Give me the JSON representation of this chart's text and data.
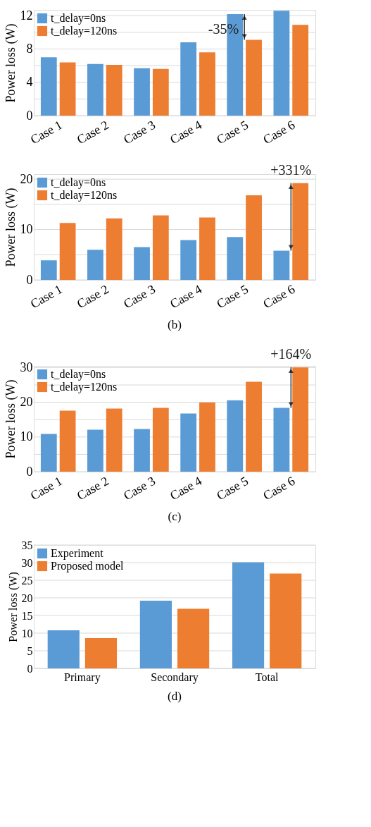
{
  "chart_data": [
    {
      "type": "bar",
      "ylabel": "Power loss (W)",
      "categories": [
        "Case 1",
        "Case 2",
        "Case 3",
        "Case 4",
        "Case 5",
        "Case 6"
      ],
      "series": [
        {
          "name": "t_delay=0ns",
          "color": "#5b9bd5",
          "values": [
            7.0,
            6.2,
            5.7,
            8.8,
            12.2,
            12.6
          ]
        },
        {
          "name": "t_delay=120ns",
          "color": "#ed7d31",
          "values": [
            6.4,
            6.1,
            5.6,
            7.6,
            9.1,
            10.9
          ]
        }
      ],
      "ylim": [
        0,
        12.7
      ],
      "yticks": [
        0,
        {
          "value": 2,
          "label": null
        },
        4,
        {
          "value": 6,
          "label": null
        },
        8,
        {
          "value": 10,
          "label": null
        },
        12
      ],
      "grid": "y",
      "legend": "top left",
      "annotations": [
        {
          "text": "-35%",
          "x": "Case 5",
          "y": 12.2
        }
      ]
    },
    {
      "type": "bar",
      "ylabel": "Power loss (W)",
      "categories": [
        "Case 1",
        "Case 2",
        "Case 3",
        "Case 4",
        "Case 5",
        "Case 6"
      ],
      "series": [
        {
          "name": "t_delay=0ns",
          "color": "#5b9bd5",
          "values": [
            3.9,
            6.0,
            6.5,
            7.9,
            8.5,
            5.8
          ]
        },
        {
          "name": "t_delay=120ns",
          "color": "#ed7d31",
          "values": [
            11.3,
            12.2,
            12.8,
            12.4,
            16.8,
            19.2
          ]
        }
      ],
      "ylim": [
        0,
        21
      ],
      "yticks": [
        0,
        {
          "value": 5,
          "label": null
        },
        10,
        {
          "value": 15,
          "label": null
        },
        20
      ],
      "grid": "y",
      "legend": "top left",
      "annotations": [
        {
          "text": "+331%",
          "x": "Case 6",
          "y": 19.2
        },
        "(b)"
      ]
    },
    {
      "type": "bar",
      "ylabel": "Power loss (W)",
      "categories": [
        "Case 1",
        "Case 2",
        "Case 3",
        "Case 4",
        "Case 5",
        "Case 6"
      ],
      "series": [
        {
          "name": "t_delay=0ns",
          "color": "#5b9bd5",
          "values": [
            10.9,
            12.1,
            12.3,
            16.8,
            20.6,
            18.4
          ]
        },
        {
          "name": "t_delay=120ns",
          "color": "#ed7d31",
          "values": [
            17.6,
            18.2,
            18.4,
            20.0,
            25.9,
            30.1
          ]
        }
      ],
      "ylim": [
        0,
        30.5
      ],
      "yticks": [
        0,
        {
          "value": 5,
          "label": null
        },
        10,
        {
          "value": 15,
          "label": null
        },
        20,
        {
          "value": 25,
          "label": null
        },
        30
      ],
      "grid": "y",
      "legend": "top left",
      "annotations": [
        {
          "text": "+164%",
          "x": "Case 6",
          "y": 30.1
        },
        "(c)"
      ]
    },
    {
      "type": "bar",
      "ylabel": "Power loss (W)",
      "categories": [
        "Primary",
        "Secondary",
        "Total"
      ],
      "series": [
        {
          "name": "Experiment",
          "color": "#5b9bd5",
          "values": [
            10.8,
            19.2,
            30.1
          ]
        },
        {
          "name": "Proposed model",
          "color": "#ed7d31",
          "values": [
            8.6,
            16.9,
            26.9
          ]
        }
      ],
      "ylim": [
        0,
        35
      ],
      "yticks": [
        0,
        5,
        10,
        15,
        20,
        25,
        30,
        35
      ],
      "grid": "y",
      "legend": "top left",
      "annotations": [
        "(d)"
      ]
    }
  ]
}
